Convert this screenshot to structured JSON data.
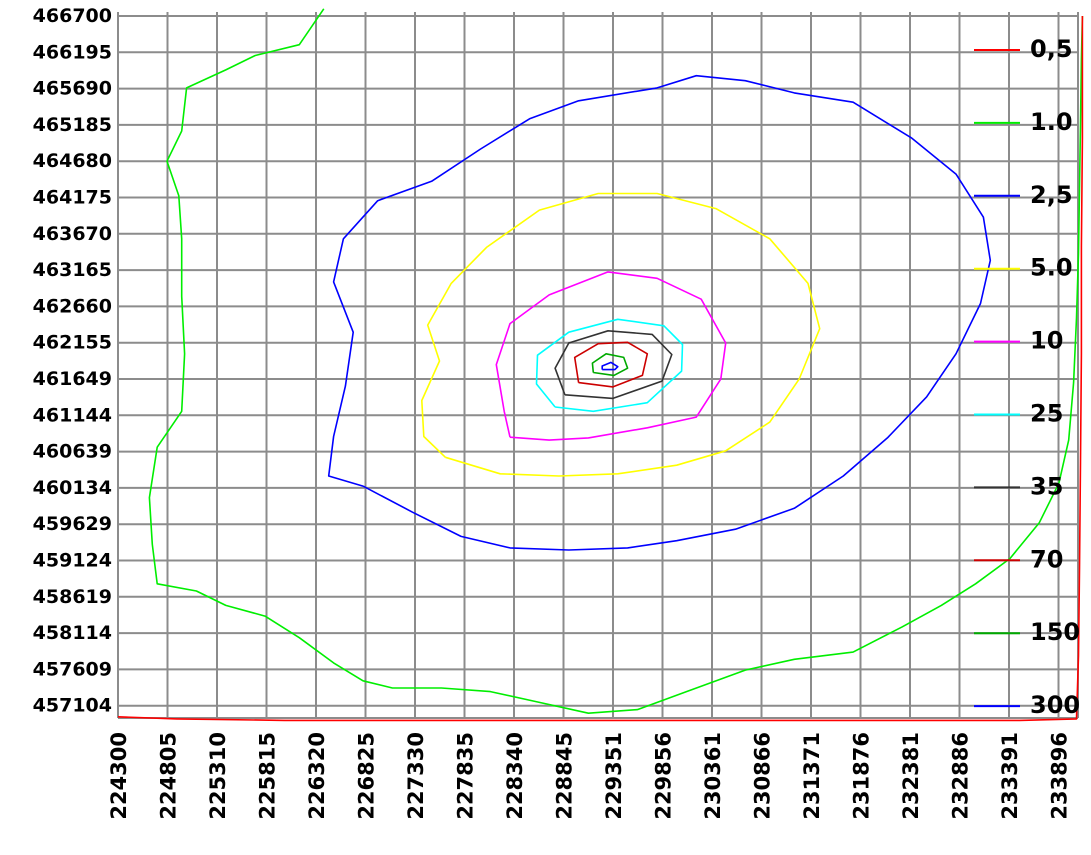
{
  "chart_data": {
    "type": "line",
    "title": "",
    "xlabel": "",
    "ylabel": "",
    "x_ticks": [
      "224300",
      "224805",
      "225310",
      "225815",
      "226320",
      "226825",
      "227330",
      "227835",
      "228340",
      "228845",
      "229351",
      "229856",
      "230361",
      "230866",
      "231371",
      "231876",
      "232381",
      "232886",
      "233391",
      "233896"
    ],
    "y_ticks": [
      "466700",
      "466195",
      "465690",
      "465185",
      "464680",
      "464175",
      "463670",
      "463165",
      "462660",
      "462155",
      "461649",
      "461144",
      "460639",
      "460134",
      "459629",
      "459124",
      "458619",
      "458114",
      "457609",
      "457104"
    ],
    "xlim": [
      224300,
      234140
    ],
    "ylim": [
      456850,
      466700
    ],
    "grid": true,
    "legend_position": "right",
    "series": [
      {
        "name": "300",
        "color": "#0000ff",
        "points": [
          [
            229240,
            461780
          ],
          [
            229370,
            461780
          ],
          [
            229400,
            461820
          ],
          [
            229330,
            461880
          ],
          [
            229240,
            461830
          ],
          [
            229240,
            461780
          ]
        ]
      },
      {
        "name": "150",
        "color": "#00aa00",
        "points": [
          [
            229150,
            461740
          ],
          [
            229360,
            461700
          ],
          [
            229500,
            461800
          ],
          [
            229460,
            461950
          ],
          [
            229280,
            462000
          ],
          [
            229140,
            461870
          ],
          [
            229150,
            461740
          ]
        ]
      },
      {
        "name": "70",
        "color": "#cc0000",
        "points": [
          [
            229000,
            461600
          ],
          [
            229350,
            461540
          ],
          [
            229650,
            461700
          ],
          [
            229700,
            462000
          ],
          [
            229500,
            462160
          ],
          [
            229200,
            462140
          ],
          [
            228960,
            461950
          ],
          [
            229000,
            461600
          ]
        ]
      },
      {
        "name": "35",
        "color": "#333333",
        "points": [
          [
            228860,
            461430
          ],
          [
            229350,
            461380
          ],
          [
            229850,
            461620
          ],
          [
            229950,
            461990
          ],
          [
            229750,
            462270
          ],
          [
            229300,
            462320
          ],
          [
            228900,
            462150
          ],
          [
            228760,
            461800
          ],
          [
            228860,
            461430
          ]
        ]
      },
      {
        "name": "25",
        "color": "#00ffff",
        "points": [
          [
            228760,
            461260
          ],
          [
            229150,
            461200
          ],
          [
            229700,
            461320
          ],
          [
            230050,
            461760
          ],
          [
            230060,
            462130
          ],
          [
            229870,
            462390
          ],
          [
            229400,
            462480
          ],
          [
            228900,
            462300
          ],
          [
            228580,
            461980
          ],
          [
            228570,
            461580
          ],
          [
            228760,
            461260
          ]
        ]
      },
      {
        "name": "10",
        "color": "#ff00ff",
        "points": [
          [
            228300,
            460840
          ],
          [
            228700,
            460800
          ],
          [
            229100,
            460830
          ],
          [
            229700,
            460970
          ],
          [
            230200,
            461120
          ],
          [
            230450,
            461650
          ],
          [
            230500,
            462150
          ],
          [
            230250,
            462760
          ],
          [
            229800,
            463050
          ],
          [
            229300,
            463140
          ],
          [
            228700,
            462820
          ],
          [
            228300,
            462420
          ],
          [
            228160,
            461850
          ],
          [
            228240,
            461200
          ],
          [
            228300,
            460840
          ]
        ]
      },
      {
        "name": "5.0",
        "color": "#ffff00",
        "points": [
          [
            227640,
            460560
          ],
          [
            228200,
            460330
          ],
          [
            228800,
            460300
          ],
          [
            229400,
            460330
          ],
          [
            230000,
            460450
          ],
          [
            230500,
            460650
          ],
          [
            230950,
            461050
          ],
          [
            231250,
            461650
          ],
          [
            231460,
            462350
          ],
          [
            231340,
            462980
          ],
          [
            230950,
            463600
          ],
          [
            230400,
            464020
          ],
          [
            229800,
            464230
          ],
          [
            229200,
            464230
          ],
          [
            228600,
            464000
          ],
          [
            228060,
            463480
          ],
          [
            227700,
            462980
          ],
          [
            227460,
            462400
          ],
          [
            227580,
            461900
          ],
          [
            227400,
            461350
          ],
          [
            227420,
            460850
          ],
          [
            227640,
            460560
          ]
        ]
      },
      {
        "name": "2,5",
        "color": "#0000ff",
        "points": [
          [
            226800,
            460160
          ],
          [
            227300,
            459800
          ],
          [
            227800,
            459460
          ],
          [
            228300,
            459300
          ],
          [
            228900,
            459270
          ],
          [
            229500,
            459300
          ],
          [
            230000,
            459400
          ],
          [
            230600,
            459560
          ],
          [
            231200,
            459850
          ],
          [
            231700,
            460300
          ],
          [
            232150,
            460830
          ],
          [
            232550,
            461400
          ],
          [
            232850,
            462000
          ],
          [
            233100,
            462700
          ],
          [
            233200,
            463300
          ],
          [
            233130,
            463900
          ],
          [
            232850,
            464500
          ],
          [
            232400,
            465000
          ],
          [
            231800,
            465500
          ],
          [
            231200,
            465630
          ],
          [
            230700,
            465800
          ],
          [
            230200,
            465870
          ],
          [
            229800,
            465700
          ],
          [
            229000,
            465520
          ],
          [
            228500,
            465270
          ],
          [
            228000,
            464850
          ],
          [
            227500,
            464400
          ],
          [
            226950,
            464130
          ],
          [
            226600,
            463600
          ],
          [
            226500,
            463000
          ],
          [
            226700,
            462300
          ],
          [
            226620,
            461550
          ],
          [
            226500,
            460850
          ],
          [
            226450,
            460300
          ],
          [
            226800,
            460160
          ]
        ]
      },
      {
        "name": "1.0",
        "color": "#00ee00",
        "points": [
          [
            226400,
            466800
          ],
          [
            226150,
            466300
          ],
          [
            225700,
            466150
          ],
          [
            225400,
            465950
          ],
          [
            225000,
            465700
          ],
          [
            224950,
            465100
          ],
          [
            224800,
            464680
          ],
          [
            224920,
            464200
          ],
          [
            224950,
            463600
          ],
          [
            224950,
            462800
          ],
          [
            224980,
            462000
          ],
          [
            224950,
            461200
          ],
          [
            224700,
            460700
          ],
          [
            224620,
            460000
          ],
          [
            224650,
            459350
          ],
          [
            224700,
            458800
          ],
          [
            225100,
            458700
          ],
          [
            225400,
            458500
          ],
          [
            225800,
            458350
          ],
          [
            226150,
            458050
          ],
          [
            226500,
            457700
          ],
          [
            226800,
            457450
          ],
          [
            227100,
            457350
          ],
          [
            227600,
            457350
          ],
          [
            228100,
            457300
          ],
          [
            228600,
            457150
          ],
          [
            229100,
            457000
          ],
          [
            229600,
            457050
          ],
          [
            230100,
            457300
          ],
          [
            230700,
            457600
          ],
          [
            231200,
            457750
          ],
          [
            231800,
            457850
          ],
          [
            232300,
            458200
          ],
          [
            232700,
            458500
          ],
          [
            233050,
            458800
          ],
          [
            233400,
            459150
          ],
          [
            233700,
            459650
          ],
          [
            233900,
            460200
          ],
          [
            234000,
            460800
          ],
          [
            234050,
            461600
          ],
          [
            234080,
            462500
          ],
          [
            234100,
            463400
          ],
          [
            234110,
            464300
          ],
          [
            234120,
            465200
          ],
          [
            234130,
            466100
          ],
          [
            234140,
            466700
          ]
        ]
      },
      {
        "name": "0,5",
        "color": "#ff0000",
        "points": [
          [
            224300,
            456950
          ],
          [
            224900,
            456920
          ],
          [
            226000,
            456900
          ],
          [
            227500,
            456900
          ],
          [
            229000,
            456900
          ],
          [
            230500,
            456900
          ],
          [
            232000,
            456900
          ],
          [
            233500,
            456900
          ],
          [
            234080,
            456920
          ],
          [
            234100,
            457800
          ],
          [
            234110,
            459000
          ],
          [
            234120,
            460500
          ],
          [
            234130,
            462000
          ],
          [
            234130,
            463500
          ],
          [
            234140,
            465000
          ],
          [
            234140,
            466700
          ]
        ]
      }
    ]
  }
}
